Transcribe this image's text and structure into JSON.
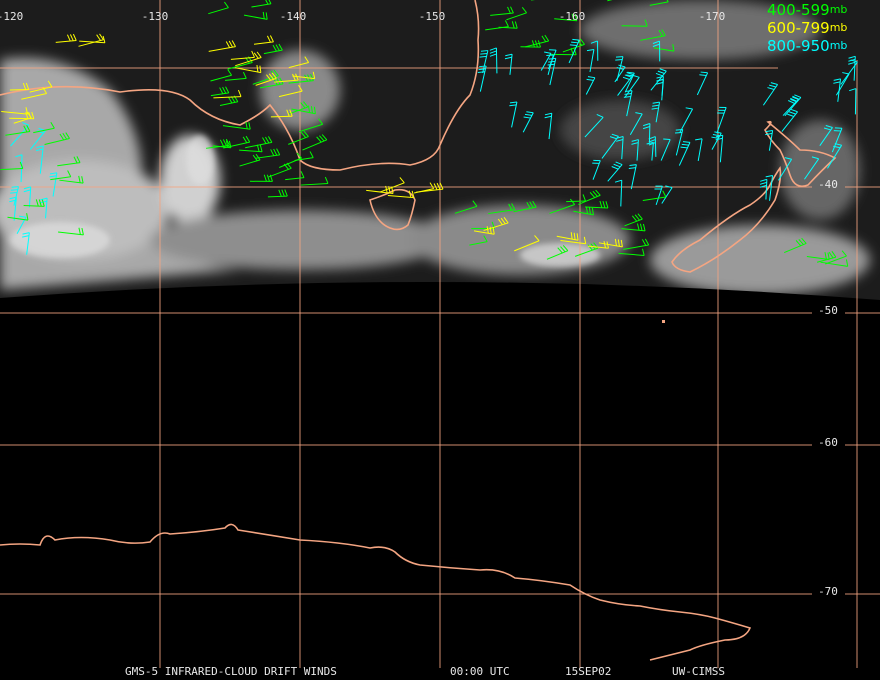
{
  "map": {
    "longitude_labels": [
      "-120",
      "-130",
      "-140",
      "-150",
      "-160",
      "-170"
    ],
    "latitude_labels": [
      "-40",
      "-50",
      "-60",
      "-70"
    ],
    "legend": [
      {
        "label": "400-599",
        "unit": "mb",
        "color": "#00ff00"
      },
      {
        "label": "600-799",
        "unit": "mb",
        "color": "#ffff00"
      },
      {
        "label": "800-950",
        "unit": "mb",
        "color": "#00ffff"
      }
    ],
    "footer": [
      "GMS-5 INFRARED-CLOUD DRIFT WINDS",
      "00:00 UTC",
      "15SEP02",
      "UW-CIMSS"
    ]
  }
}
